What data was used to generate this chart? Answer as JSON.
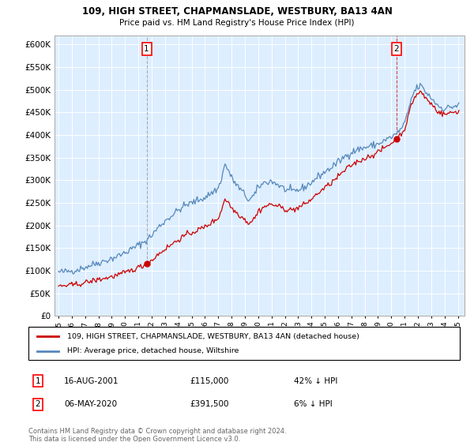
{
  "title": "109, HIGH STREET, CHAPMANSLADE, WESTBURY, BA13 4AN",
  "subtitle": "Price paid vs. HM Land Registry's House Price Index (HPI)",
  "legend_label_red": "109, HIGH STREET, CHAPMANSLADE, WESTBURY, BA13 4AN (detached house)",
  "legend_label_blue": "HPI: Average price, detached house, Wiltshire",
  "annotation1_date": "16-AUG-2001",
  "annotation1_price": "£115,000",
  "annotation1_hpi": "42% ↓ HPI",
  "annotation2_date": "06-MAY-2020",
  "annotation2_price": "£391,500",
  "annotation2_hpi": "6% ↓ HPI",
  "footnote": "Contains HM Land Registry data © Crown copyright and database right 2024.\nThis data is licensed under the Open Government Licence v3.0.",
  "red_color": "#cc0000",
  "blue_color": "#5588bb",
  "bg_color": "#ddeeff",
  "sale1_x": 2001.62,
  "sale1_y": 115000,
  "sale2_x": 2020.38,
  "sale2_y": 391500,
  "xlim_left": 1994.7,
  "xlim_right": 2025.5,
  "ylim": [
    0,
    620000
  ],
  "yticks": [
    0,
    50000,
    100000,
    150000,
    200000,
    250000,
    300000,
    350000,
    400000,
    450000,
    500000,
    550000,
    600000
  ],
  "xtick_years": [
    1995,
    1996,
    1997,
    1998,
    1999,
    2000,
    2001,
    2002,
    2003,
    2004,
    2005,
    2006,
    2007,
    2008,
    2009,
    2010,
    2011,
    2012,
    2013,
    2014,
    2015,
    2016,
    2017,
    2018,
    2019,
    2020,
    2021,
    2022,
    2023,
    2024,
    2025
  ]
}
